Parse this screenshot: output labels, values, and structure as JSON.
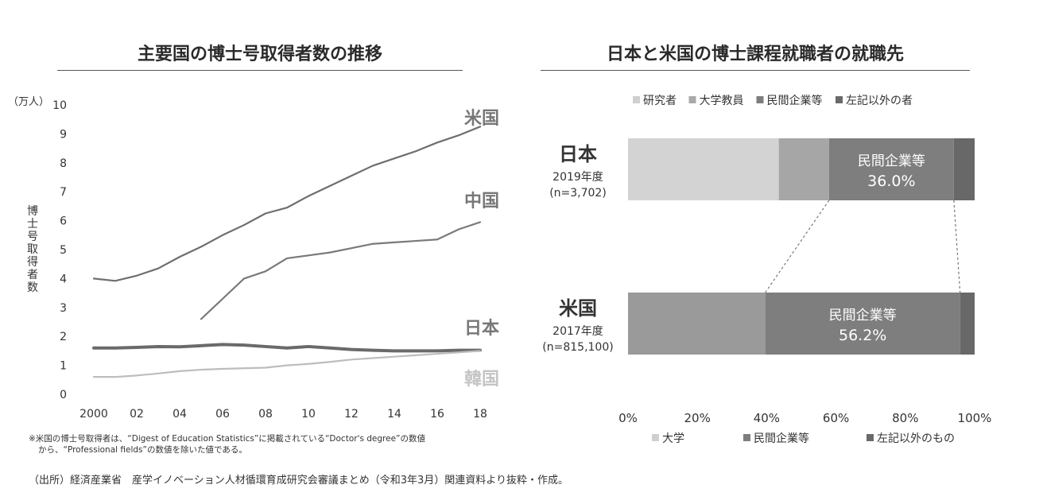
{
  "chart_data": [
    {
      "type": "line",
      "title": "主要国の博士号取得者数の推移",
      "unit_label": "（万人）",
      "ylabel": "博士号取得者数",
      "ylim": [
        0,
        10
      ],
      "yticks": [
        "0",
        "1",
        "2",
        "3",
        "4",
        "5",
        "6",
        "7",
        "8",
        "9",
        "10"
      ],
      "xticks": [
        "2000",
        "02",
        "04",
        "06",
        "08",
        "10",
        "12",
        "14",
        "16",
        "18"
      ],
      "x": [
        2000,
        2001,
        2002,
        2003,
        2004,
        2005,
        2006,
        2007,
        2008,
        2009,
        2010,
        2011,
        2012,
        2013,
        2014,
        2015,
        2016,
        2017,
        2018
      ],
      "series": [
        {
          "name": "米国",
          "color": "#6e6e6e",
          "values": [
            4.0,
            3.92,
            4.1,
            4.35,
            4.75,
            5.1,
            5.5,
            5.85,
            6.25,
            6.45,
            6.85,
            7.2,
            7.55,
            7.9,
            8.15,
            8.4,
            8.7,
            8.95,
            9.25
          ]
        },
        {
          "name": "中国",
          "color": "#7a7a7a",
          "values": [
            null,
            null,
            null,
            null,
            null,
            2.6,
            3.3,
            4.0,
            4.25,
            4.7,
            4.8,
            4.9,
            5.05,
            5.2,
            5.25,
            5.3,
            5.35,
            5.7,
            5.95
          ]
        },
        {
          "name": "日本",
          "color": "#6a6a6a",
          "values": [
            1.6,
            1.6,
            1.62,
            1.65,
            1.64,
            1.68,
            1.72,
            1.7,
            1.65,
            1.6,
            1.65,
            1.6,
            1.55,
            1.52,
            1.5,
            1.5,
            1.5,
            1.52,
            1.52
          ]
        },
        {
          "name": "韓国",
          "color": "#bdbdbd",
          "values": [
            0.6,
            0.6,
            0.65,
            0.72,
            0.8,
            0.85,
            0.88,
            0.9,
            0.92,
            1.0,
            1.05,
            1.12,
            1.2,
            1.25,
            1.3,
            1.35,
            1.4,
            1.45,
            1.5
          ]
        }
      ],
      "note_lines": [
        "※米国の博士号取得者は、“Digest of Education Statistics”に掲載されている“Doctor's degree”の数値",
        "から、“Professional fields”の数値を除いた値である。"
      ]
    },
    {
      "type": "bar",
      "orientation": "horizontal-stacked-100",
      "title": "日本と米国の博士課程就職者の就職先",
      "xlim": [
        0,
        100
      ],
      "xticks": [
        "0%",
        "20%",
        "40%",
        "60%",
        "80%",
        "100%"
      ],
      "legend_top": [
        {
          "label": "研究者",
          "color": "#cfcfcf"
        },
        {
          "label": "大学教員",
          "color": "#a9a9a9"
        },
        {
          "label": "民間企業等",
          "color": "#7d7d7d"
        },
        {
          "label": "左記以外の者",
          "color": "#6a6a6a"
        }
      ],
      "legend_bottom": [
        {
          "label": "大学",
          "color": "#cfcfcf"
        },
        {
          "label": "民間企業等",
          "color": "#7d7d7d"
        },
        {
          "label": "左記以外のもの",
          "color": "#6a6a6a"
        }
      ],
      "bars": [
        {
          "country": "日本",
          "year": "2019年度",
          "n": "(n=3,702)",
          "segments": [
            {
              "name": "研究者",
              "value": 43.5,
              "color": "#d3d3d3"
            },
            {
              "name": "大学教員",
              "value": 14.5,
              "color": "#a6a6a6"
            },
            {
              "name": "民間企業等",
              "value": 36.0,
              "color": "#7e7e7e"
            },
            {
              "name": "左記以外の者",
              "value": 6.0,
              "color": "#686868"
            }
          ],
          "highlight_title": "民間企業等",
          "highlight_value": "36.0%"
        },
        {
          "country": "米国",
          "year": "2017年度",
          "n": "(n=815,100)",
          "segments": [
            {
              "name": "大学",
              "value": 39.6,
              "color": "#9a9a9a"
            },
            {
              "name": "民間企業等",
              "value": 56.2,
              "color": "#7e7e7e"
            },
            {
              "name": "左記以外のもの",
              "value": 4.2,
              "color": "#686868"
            }
          ],
          "highlight_title": "民間企業等",
          "highlight_value": "56.2%"
        }
      ]
    }
  ],
  "source": "（出所）経済産業省　産学イノベーション人材循環育成研究会審議まとめ（令和3年3月）関連資料より抜粋・作成。"
}
